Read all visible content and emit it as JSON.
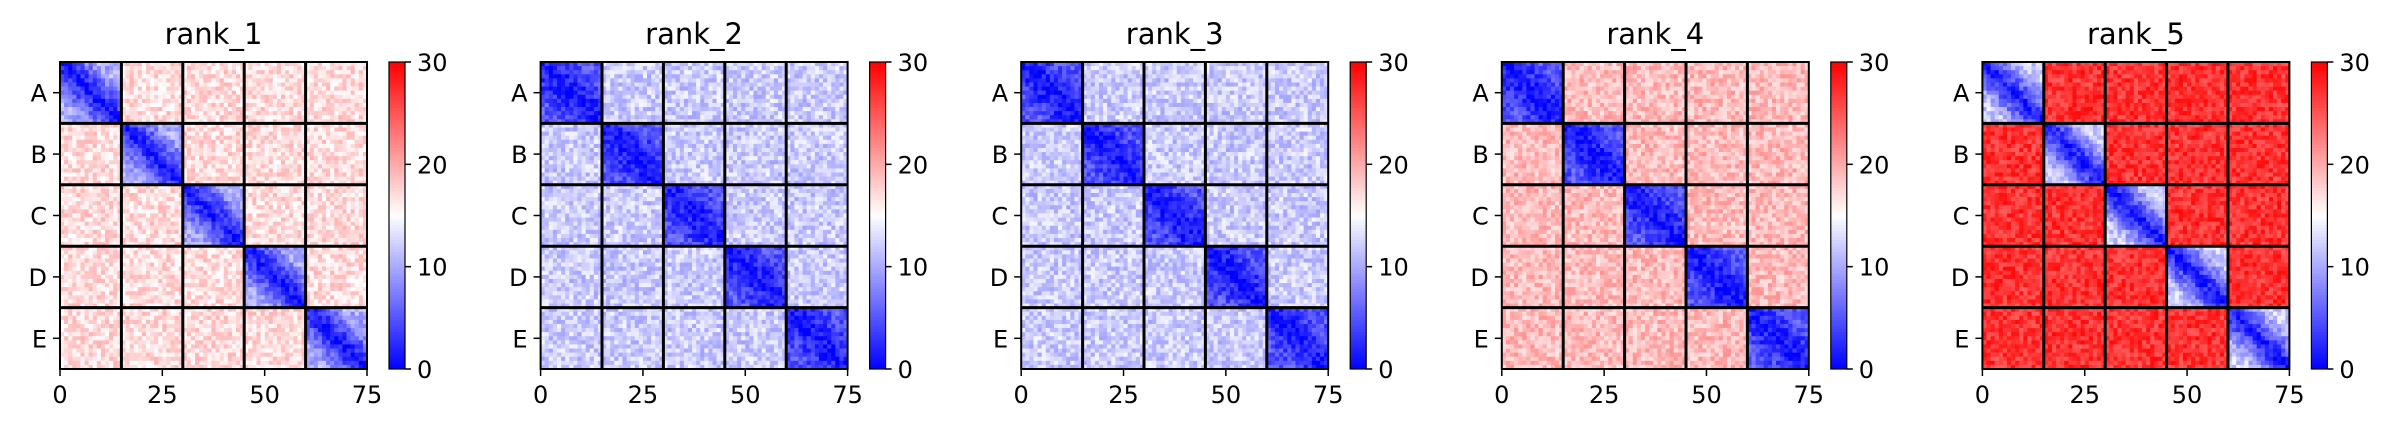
{
  "chart_data": {
    "type": "heatmap",
    "colormap": "bwr",
    "colors": {
      "low": "#0000ff",
      "mid": "#ffffff",
      "high": "#ff0000"
    },
    "vmin": 0,
    "vmax": 30,
    "colorbar_ticks": [
      "0",
      "10",
      "20",
      "30"
    ],
    "x_ticks": [
      "0",
      "25",
      "50",
      "75"
    ],
    "xlim": [
      0,
      75
    ],
    "chains": [
      "A",
      "B",
      "C",
      "D",
      "E"
    ],
    "chain_length": 15,
    "panels": [
      {
        "title": "rank_1",
        "intra_chain_level": 10,
        "inter_chain_level": 17,
        "diagonal_level": 1
      },
      {
        "title": "rank_2",
        "intra_chain_level": 5,
        "inter_chain_level": 12,
        "diagonal_level": 1
      },
      {
        "title": "rank_3",
        "intra_chain_level": 5,
        "inter_chain_level": 12,
        "diagonal_level": 1
      },
      {
        "title": "rank_4",
        "intra_chain_level": 5,
        "inter_chain_level": 19,
        "diagonal_level": 1
      },
      {
        "title": "rank_5",
        "intra_chain_level": 12,
        "inter_chain_level": 27,
        "diagonal_level": 1
      }
    ]
  }
}
